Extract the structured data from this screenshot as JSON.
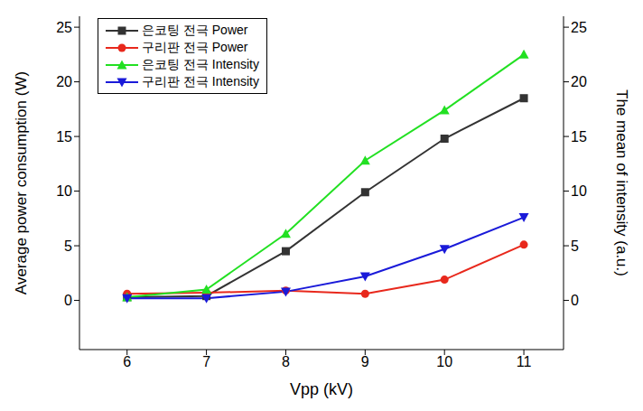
{
  "chart_data": {
    "type": "line",
    "x_label": "Vpp (kV)",
    "y_label": "Average power consumption (W)",
    "y2_label": "The mean of intensity (a.u.)",
    "x": [
      6,
      7,
      8,
      9,
      10,
      11
    ],
    "xlim": [
      5.4,
      11.5
    ],
    "xticks": [
      6,
      7,
      8,
      9,
      10,
      11
    ],
    "ylim": [
      -4.5,
      26
    ],
    "yticks": [
      0,
      5,
      10,
      15,
      20,
      25
    ],
    "y2lim": [
      -4.5,
      26
    ],
    "y2ticks": [
      0,
      5,
      10,
      15,
      20,
      25
    ],
    "grid": false,
    "legend": "upper left",
    "series": [
      {
        "name": "은코팅 전극 Power",
        "color": "#333333",
        "marker": "square",
        "values": [
          0.3,
          0.4,
          4.5,
          9.9,
          14.8,
          18.5
        ]
      },
      {
        "name": "구리판 전극 Power",
        "color": "#e8281c",
        "marker": "circle",
        "values": [
          0.6,
          0.7,
          0.9,
          0.6,
          1.9,
          5.1
        ]
      },
      {
        "name": "은코팅 전극 Intensity",
        "color": "#22e022",
        "marker": "triangle-up",
        "axis": "y2",
        "values": [
          0.3,
          1.0,
          6.1,
          12.8,
          17.4,
          22.5
        ]
      },
      {
        "name": "구리판 전극 Intensity",
        "color": "#1a1ad9",
        "marker": "triangle-down",
        "axis": "y2",
        "values": [
          0.2,
          0.2,
          0.8,
          2.2,
          4.7,
          7.6
        ]
      }
    ]
  }
}
